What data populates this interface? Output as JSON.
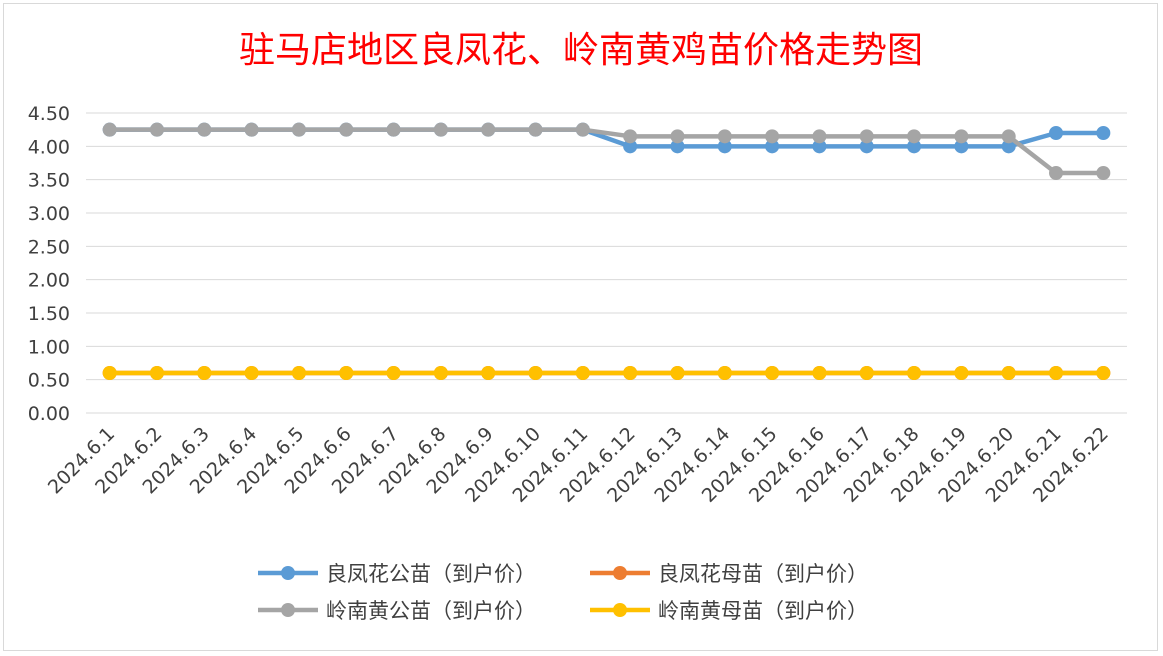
{
  "chart_data": {
    "type": "line",
    "title": "驻马店地区良凤花、岭南黄鸡苗价格走势图",
    "xlabel": "",
    "ylabel": "",
    "ylim": [
      0,
      4.5
    ],
    "yticks": [
      "0.00",
      "0.50",
      "1.00",
      "1.50",
      "2.00",
      "2.50",
      "3.00",
      "3.50",
      "4.00",
      "4.50"
    ],
    "grid": true,
    "legend_position": "bottom",
    "categories": [
      "2024.6.1",
      "2024.6.2",
      "2024.6.3",
      "2024.6.4",
      "2024.6.5",
      "2024.6.6",
      "2024.6.7",
      "2024.6.8",
      "2024.6.9",
      "2024.6.10",
      "2024.6.11",
      "2024.6.12",
      "2024.6.13",
      "2024.6.14",
      "2024.6.15",
      "2024.6.16",
      "2024.6.17",
      "2024.6.18",
      "2024.6.19",
      "2024.6.20",
      "2024.6.21",
      "2024.6.22"
    ],
    "series": [
      {
        "name": "良凤花公苗（到户价）",
        "color": "#5b9bd5",
        "values": [
          4.25,
          4.25,
          4.25,
          4.25,
          4.25,
          4.25,
          4.25,
          4.25,
          4.25,
          4.25,
          4.25,
          4.0,
          4.0,
          4.0,
          4.0,
          4.0,
          4.0,
          4.0,
          4.0,
          4.0,
          4.2,
          4.2
        ]
      },
      {
        "name": "良凤花母苗（到户价）",
        "color": "#ed7d31",
        "values": [
          0.6,
          0.6,
          0.6,
          0.6,
          0.6,
          0.6,
          0.6,
          0.6,
          0.6,
          0.6,
          0.6,
          0.6,
          0.6,
          0.6,
          0.6,
          0.6,
          0.6,
          0.6,
          0.6,
          0.6,
          0.6,
          0.6
        ]
      },
      {
        "name": "岭南黄公苗（到户价）",
        "color": "#a5a5a5",
        "values": [
          4.25,
          4.25,
          4.25,
          4.25,
          4.25,
          4.25,
          4.25,
          4.25,
          4.25,
          4.25,
          4.25,
          4.15,
          4.15,
          4.15,
          4.15,
          4.15,
          4.15,
          4.15,
          4.15,
          4.15,
          3.6,
          3.6
        ]
      },
      {
        "name": "岭南黄母苗（到户价）",
        "color": "#ffc000",
        "values": [
          0.6,
          0.6,
          0.6,
          0.6,
          0.6,
          0.6,
          0.6,
          0.6,
          0.6,
          0.6,
          0.6,
          0.6,
          0.6,
          0.6,
          0.6,
          0.6,
          0.6,
          0.6,
          0.6,
          0.6,
          0.6,
          0.6
        ]
      }
    ]
  }
}
